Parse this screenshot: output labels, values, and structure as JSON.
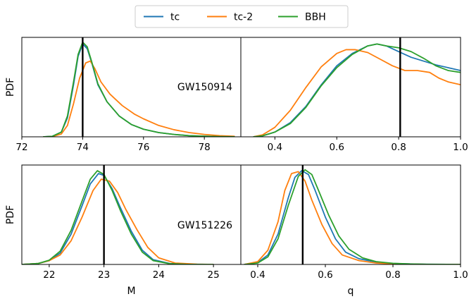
{
  "colors": {
    "tc": "#1f77b4",
    "tc-2": "#ff7f0e",
    "BBH": "#2ca02c",
    "truth": "#000000"
  },
  "chart_data": {
    "type": "line",
    "legend": {
      "placement": "top-center",
      "entries": [
        "tc",
        "tc-2",
        "BBH"
      ]
    },
    "panels": [
      {
        "id": "gw150914-M",
        "row": 0,
        "col": 0,
        "xlim": [
          72,
          79.2
        ],
        "xticks": [
          72,
          74,
          76,
          78
        ],
        "ylabel": "PDF",
        "xlabel": "",
        "annotation": "",
        "truth": 74.0,
        "series": [
          {
            "name": "tc",
            "x": [
              72.7,
              73.0,
              73.3,
              73.5,
              73.7,
              73.85,
              74.0,
              74.15,
              74.3,
              74.5,
              74.8,
              75.2,
              75.6,
              76.0,
              76.5,
              77.0,
              77.5,
              78.0,
              78.5,
              79.0
            ],
            "y": [
              0.0,
              0.005,
              0.05,
              0.2,
              0.55,
              0.85,
              0.98,
              0.93,
              0.78,
              0.55,
              0.37,
              0.22,
              0.13,
              0.08,
              0.045,
              0.025,
              0.012,
              0.006,
              0.003,
              0.001
            ]
          },
          {
            "name": "tc-2",
            "x": [
              72.7,
              73.0,
              73.3,
              73.5,
              73.7,
              73.9,
              74.1,
              74.25,
              74.4,
              74.6,
              74.9,
              75.3,
              75.7,
              76.0,
              76.5,
              77.0,
              77.5,
              78.0,
              78.5,
              79.0
            ],
            "y": [
              0.0,
              0.003,
              0.03,
              0.12,
              0.35,
              0.62,
              0.78,
              0.8,
              0.72,
              0.58,
              0.45,
              0.33,
              0.24,
              0.19,
              0.12,
              0.075,
              0.045,
              0.025,
              0.012,
              0.005
            ]
          },
          {
            "name": "BBH",
            "x": [
              72.7,
              73.0,
              73.3,
              73.5,
              73.7,
              73.85,
              74.0,
              74.15,
              74.3,
              74.5,
              74.8,
              75.2,
              75.6,
              76.0,
              76.5,
              77.0,
              77.5,
              78.0,
              78.5,
              79.0
            ],
            "y": [
              0.0,
              0.005,
              0.05,
              0.22,
              0.58,
              0.87,
              1.0,
              0.95,
              0.79,
              0.56,
              0.37,
              0.22,
              0.13,
              0.08,
              0.045,
              0.025,
              0.012,
              0.006,
              0.003,
              0.001
            ]
          }
        ]
      },
      {
        "id": "gw150914-q",
        "row": 0,
        "col": 1,
        "xlim": [
          0.29,
          1.0
        ],
        "xticks": [
          0.4,
          0.6,
          0.8,
          1.0
        ],
        "ylabel": "",
        "xlabel": "",
        "annotation": "GW150914",
        "truth": 0.805,
        "series": [
          {
            "name": "tc",
            "x": [
              0.33,
              0.36,
              0.4,
              0.45,
              0.5,
              0.55,
              0.6,
              0.65,
              0.7,
              0.73,
              0.76,
              0.8,
              0.84,
              0.88,
              0.92,
              0.96,
              1.0
            ],
            "y": [
              0.0,
              0.01,
              0.05,
              0.15,
              0.32,
              0.55,
              0.75,
              0.88,
              0.96,
              0.98,
              0.96,
              0.9,
              0.84,
              0.8,
              0.76,
              0.73,
              0.7
            ]
          },
          {
            "name": "tc-2",
            "x": [
              0.33,
              0.36,
              0.4,
              0.45,
              0.5,
              0.55,
              0.6,
              0.63,
              0.66,
              0.7,
              0.74,
              0.78,
              0.82,
              0.86,
              0.9,
              0.93,
              0.96,
              1.0
            ],
            "y": [
              0.0,
              0.02,
              0.1,
              0.28,
              0.52,
              0.74,
              0.88,
              0.92,
              0.92,
              0.89,
              0.82,
              0.75,
              0.7,
              0.7,
              0.68,
              0.62,
              0.58,
              0.55
            ]
          },
          {
            "name": "BBH",
            "x": [
              0.33,
              0.36,
              0.4,
              0.45,
              0.5,
              0.55,
              0.6,
              0.65,
              0.7,
              0.73,
              0.76,
              0.8,
              0.84,
              0.88,
              0.92,
              0.96,
              1.0
            ],
            "y": [
              0.0,
              0.01,
              0.05,
              0.14,
              0.31,
              0.54,
              0.73,
              0.87,
              0.96,
              0.98,
              0.96,
              0.94,
              0.9,
              0.83,
              0.75,
              0.7,
              0.68
            ]
          }
        ]
      },
      {
        "id": "gw151226-M",
        "row": 1,
        "col": 0,
        "xlim": [
          21.5,
          25.5
        ],
        "xticks": [
          22,
          23,
          24,
          25
        ],
        "ylabel": "PDF",
        "xlabel": "M",
        "annotation": "",
        "truth": 23.0,
        "series": [
          {
            "name": "tc",
            "x": [
              21.5,
              21.8,
              22.0,
              22.2,
              22.4,
              22.6,
              22.75,
              22.9,
              23.0,
              23.15,
              23.3,
              23.5,
              23.7,
              23.9,
              24.2,
              24.5,
              25.0
            ],
            "y": [
              0.0,
              0.01,
              0.04,
              0.12,
              0.32,
              0.62,
              0.85,
              0.96,
              0.94,
              0.8,
              0.6,
              0.35,
              0.15,
              0.05,
              0.01,
              0.003,
              0.0
            ]
          },
          {
            "name": "tc-2",
            "x": [
              21.5,
              21.8,
              22.0,
              22.2,
              22.4,
              22.6,
              22.8,
              22.95,
              23.1,
              23.25,
              23.4,
              23.6,
              23.8,
              24.0,
              24.3,
              24.7,
              25.0
            ],
            "y": [
              0.0,
              0.01,
              0.04,
              0.1,
              0.25,
              0.5,
              0.78,
              0.9,
              0.88,
              0.76,
              0.58,
              0.37,
              0.18,
              0.07,
              0.015,
              0.003,
              0.0
            ]
          },
          {
            "name": "BBH",
            "x": [
              21.5,
              21.8,
              22.0,
              22.2,
              22.4,
              22.6,
              22.75,
              22.88,
              23.0,
              23.15,
              23.3,
              23.5,
              23.7,
              23.9,
              24.2,
              24.5,
              25.0
            ],
            "y": [
              0.0,
              0.01,
              0.045,
              0.14,
              0.36,
              0.67,
              0.9,
              0.99,
              0.95,
              0.78,
              0.57,
              0.32,
              0.13,
              0.04,
              0.008,
              0.002,
              0.0
            ]
          }
        ]
      },
      {
        "id": "gw151226-q",
        "row": 1,
        "col": 1,
        "xlim": [
          0.35,
          1.0
        ],
        "xticks": [
          0.4,
          0.6,
          0.8,
          1.0
        ],
        "ylabel": "",
        "xlabel": "q",
        "annotation": "GW151226",
        "truth": 0.533,
        "series": [
          {
            "name": "tc",
            "x": [
              0.36,
              0.4,
              0.43,
              0.46,
              0.49,
              0.51,
              0.53,
              0.55,
              0.57,
              0.6,
              0.63,
              0.66,
              0.7,
              0.75,
              0.8,
              0.85,
              0.9,
              1.0
            ],
            "y": [
              0.0,
              0.02,
              0.1,
              0.32,
              0.7,
              0.92,
              0.99,
              0.95,
              0.78,
              0.5,
              0.27,
              0.13,
              0.06,
              0.025,
              0.01,
              0.005,
              0.002,
              0.0
            ]
          },
          {
            "name": "tc-2",
            "x": [
              0.36,
              0.4,
              0.43,
              0.46,
              0.48,
              0.5,
              0.52,
              0.54,
              0.56,
              0.59,
              0.62,
              0.65,
              0.7,
              0.75,
              0.8,
              0.85,
              0.9,
              1.0
            ],
            "y": [
              0.0,
              0.03,
              0.15,
              0.45,
              0.78,
              0.96,
              0.98,
              0.88,
              0.68,
              0.42,
              0.22,
              0.1,
              0.04,
              0.015,
              0.006,
              0.003,
              0.001,
              0.0
            ]
          },
          {
            "name": "BBH",
            "x": [
              0.36,
              0.4,
              0.43,
              0.46,
              0.49,
              0.52,
              0.54,
              0.56,
              0.58,
              0.61,
              0.64,
              0.67,
              0.71,
              0.75,
              0.8,
              0.85,
              0.9,
              1.0
            ],
            "y": [
              0.0,
              0.015,
              0.08,
              0.27,
              0.62,
              0.93,
              1.0,
              0.95,
              0.78,
              0.52,
              0.3,
              0.16,
              0.07,
              0.03,
              0.012,
              0.005,
              0.002,
              0.0
            ]
          }
        ]
      }
    ]
  }
}
